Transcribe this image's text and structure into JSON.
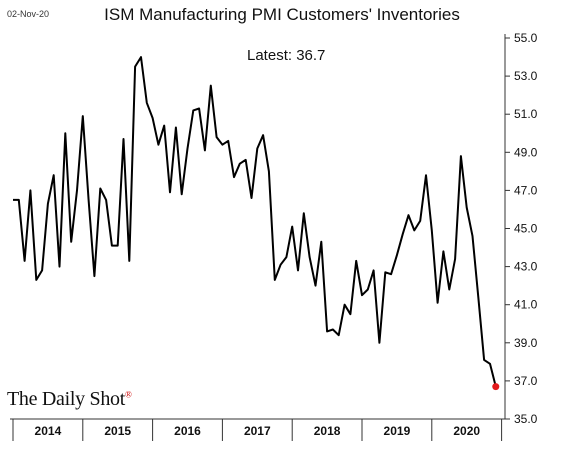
{
  "date_stamp": "02-Nov-20",
  "latest_label": "Latest:  36.7",
  "logo_text": "The Daily Shot",
  "logo_mark": "®",
  "colors": {
    "line": "#000000",
    "last_point": "#e31a1c",
    "axis": "#333333"
  },
  "chart_data": {
    "type": "line",
    "title": "ISM Manufacturing PMI Customers' Inventories",
    "xlabel": "",
    "ylabel": "",
    "ylim": [
      35.0,
      55.0
    ],
    "y_ticks": [
      "55.0",
      "53.0",
      "51.0",
      "49.0",
      "47.0",
      "45.0",
      "43.0",
      "41.0",
      "39.0",
      "37.0",
      "35.0"
    ],
    "x_tick_labels": [
      "2014",
      "2015",
      "2016",
      "2017",
      "2018",
      "2019",
      "2020"
    ],
    "x_start_year": 2014,
    "latest_value": 36.7,
    "series": [
      {
        "values": [
          46.5,
          46.5,
          43.3,
          47.0,
          42.3,
          42.8,
          46.3,
          47.8,
          43.0,
          50.0,
          44.3,
          47.0,
          50.9,
          46.5,
          42.5,
          47.1,
          46.5,
          44.1,
          44.1,
          49.7,
          43.3,
          53.5,
          54.0,
          51.6,
          50.8,
          49.4,
          50.4,
          46.9,
          50.3,
          46.8,
          49.2,
          51.2,
          51.3,
          49.1,
          52.5,
          49.8,
          49.4,
          49.6,
          47.7,
          48.4,
          48.6,
          46.6,
          49.2,
          49.9,
          48.0,
          42.3,
          43.1,
          43.5,
          45.1,
          42.8,
          45.8,
          43.5,
          42.0,
          44.3,
          39.6,
          39.7,
          39.4,
          41.0,
          40.5,
          43.3,
          41.5,
          41.8,
          42.8,
          39.0,
          42.7,
          42.6,
          43.6,
          44.7,
          45.7,
          44.9,
          45.4,
          47.8,
          44.9,
          41.1,
          43.8,
          41.8,
          43.4,
          48.8,
          46.1,
          44.6,
          41.4,
          38.1,
          37.9,
          36.7
        ]
      }
    ]
  }
}
